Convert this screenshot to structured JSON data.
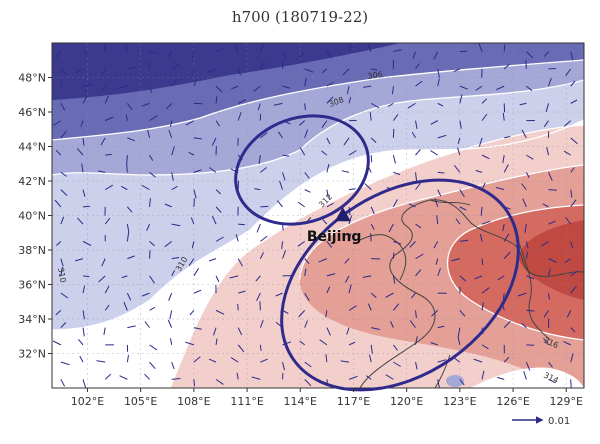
{
  "title": "h700 (180719-22)",
  "map": {
    "lon_min": 100,
    "lon_max": 130,
    "lat_min": 30,
    "lat_max": 50,
    "x_ticks": [
      {
        "value": 102,
        "label": "102°E"
      },
      {
        "value": 105,
        "label": "105°E"
      },
      {
        "value": 108,
        "label": "108°E"
      },
      {
        "value": 111,
        "label": "111°E"
      },
      {
        "value": 114,
        "label": "114°E"
      },
      {
        "value": 117,
        "label": "117°E"
      },
      {
        "value": 120,
        "label": "120°E"
      },
      {
        "value": 123,
        "label": "123°E"
      },
      {
        "value": 126,
        "label": "126°E"
      },
      {
        "value": 129,
        "label": "129°E"
      }
    ],
    "y_ticks": [
      {
        "value": 32,
        "label": "32°N"
      },
      {
        "value": 34,
        "label": "34°N"
      },
      {
        "value": 36,
        "label": "36°N"
      },
      {
        "value": 38,
        "label": "38°N"
      },
      {
        "value": 40,
        "label": "40°N"
      },
      {
        "value": 42,
        "label": "42°N"
      },
      {
        "value": 44,
        "label": "44°N"
      },
      {
        "value": 46,
        "label": "46°N"
      },
      {
        "value": 48,
        "label": "48°N"
      }
    ],
    "contour_labels": [
      "306",
      "308",
      "310",
      "310",
      "312",
      "314",
      "316"
    ],
    "city": {
      "name": "Beijing",
      "lon": 116.4,
      "lat": 39.9
    },
    "reference_vector": {
      "label": "0.01"
    },
    "colors": {
      "cold_deep": "#3b3a8e",
      "cold_mid": "#6a6bb5",
      "cold_light": "#a5a8d6",
      "cold_pale": "#ccd0ea",
      "neutral": "#ffffff",
      "warm_pale": "#f2cfcb",
      "warm_light": "#e49f97",
      "warm_mid": "#d46a60",
      "warm_deep": "#c04a42",
      "vector": "#2b2a8a",
      "ellipse": "#2f2a8c",
      "coast": "#444444"
    }
  }
}
